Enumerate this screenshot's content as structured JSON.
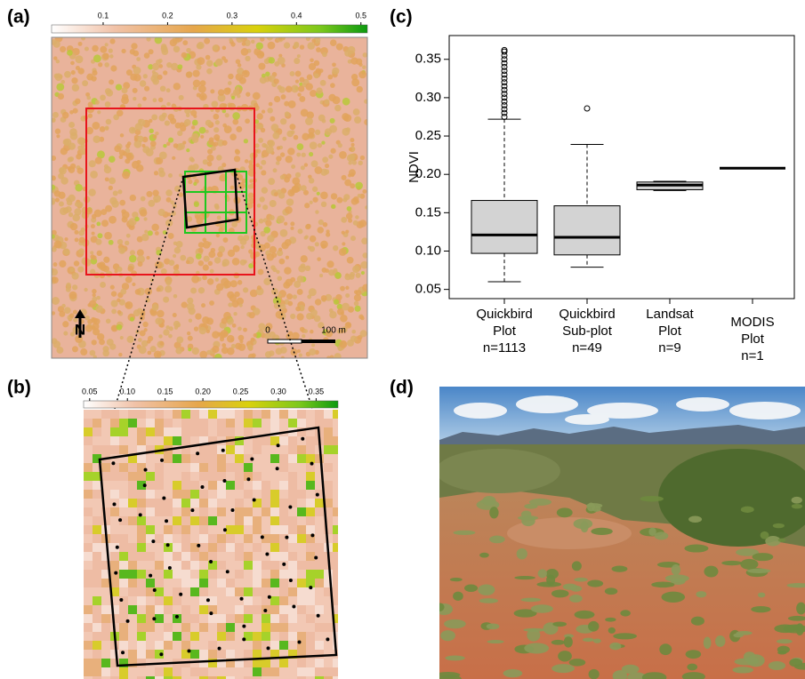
{
  "panel_labels": [
    "(a)",
    "(b)",
    "(c)",
    "(d)"
  ],
  "map_a": {
    "colorbar_lim": [
      0.02,
      0.51
    ],
    "colorbar_ticks": [
      0.1,
      0.2,
      0.3,
      0.4,
      0.5
    ],
    "scale_bar": [
      "0",
      "100 m"
    ],
    "north": "N"
  },
  "map_b": {
    "colorbar_lim": [
      0.042,
      0.379
    ],
    "colorbar_ticks": [
      {
        "value": 0.05,
        "label": "0.05"
      },
      {
        "value": 0.1,
        "label": "0.10"
      },
      {
        "value": 0.15,
        "label": "0.15"
      },
      {
        "value": 0.2,
        "label": "0.20"
      },
      {
        "value": 0.25,
        "label": "0.25"
      },
      {
        "value": 0.3,
        "label": "0.30"
      },
      {
        "value": 0.35,
        "label": "0.35"
      }
    ]
  },
  "chart_data": {
    "type": "box",
    "y_label": "NDVI",
    "categories": [
      [
        "Quickbird",
        "Plot",
        "n=1113"
      ],
      [
        "Quickbird",
        "Sub-plot",
        "n=49"
      ],
      [
        "Landsat",
        "Plot",
        "n=9"
      ],
      [
        "MODIS",
        "Plot",
        "n=1"
      ]
    ],
    "boxes": [
      {
        "low": 0.06,
        "q1": 0.097,
        "median": 0.121,
        "q3": 0.166,
        "high": 0.272,
        "outliers": [
          0.275,
          0.28,
          0.285,
          0.29,
          0.295,
          0.3,
          0.305,
          0.31,
          0.315,
          0.32,
          0.325,
          0.33,
          0.335,
          0.34,
          0.345,
          0.35,
          0.355,
          0.36,
          0.362
        ]
      },
      {
        "low": 0.079,
        "q1": 0.095,
        "median": 0.118,
        "q3": 0.159,
        "high": 0.239,
        "outliers": [
          0.286
        ]
      },
      {
        "low": 0.179,
        "q1": 0.18,
        "median": 0.186,
        "q3": 0.19,
        "high": 0.191,
        "outliers": []
      },
      {
        "low": 0.208,
        "q1": 0.208,
        "median": 0.208,
        "q3": 0.208,
        "high": 0.208,
        "outliers": []
      }
    ],
    "ylim": [
      0.038,
      0.381
    ],
    "yticks": [
      0.05,
      {
        "value": 0.1,
        "label": "0.10"
      },
      0.15,
      {
        "value": 0.2,
        "label": "0.20"
      },
      0.25,
      {
        "value": 0.3,
        "label": "0.30"
      },
      0.35
    ],
    "box_color": "#d3d3d3"
  }
}
